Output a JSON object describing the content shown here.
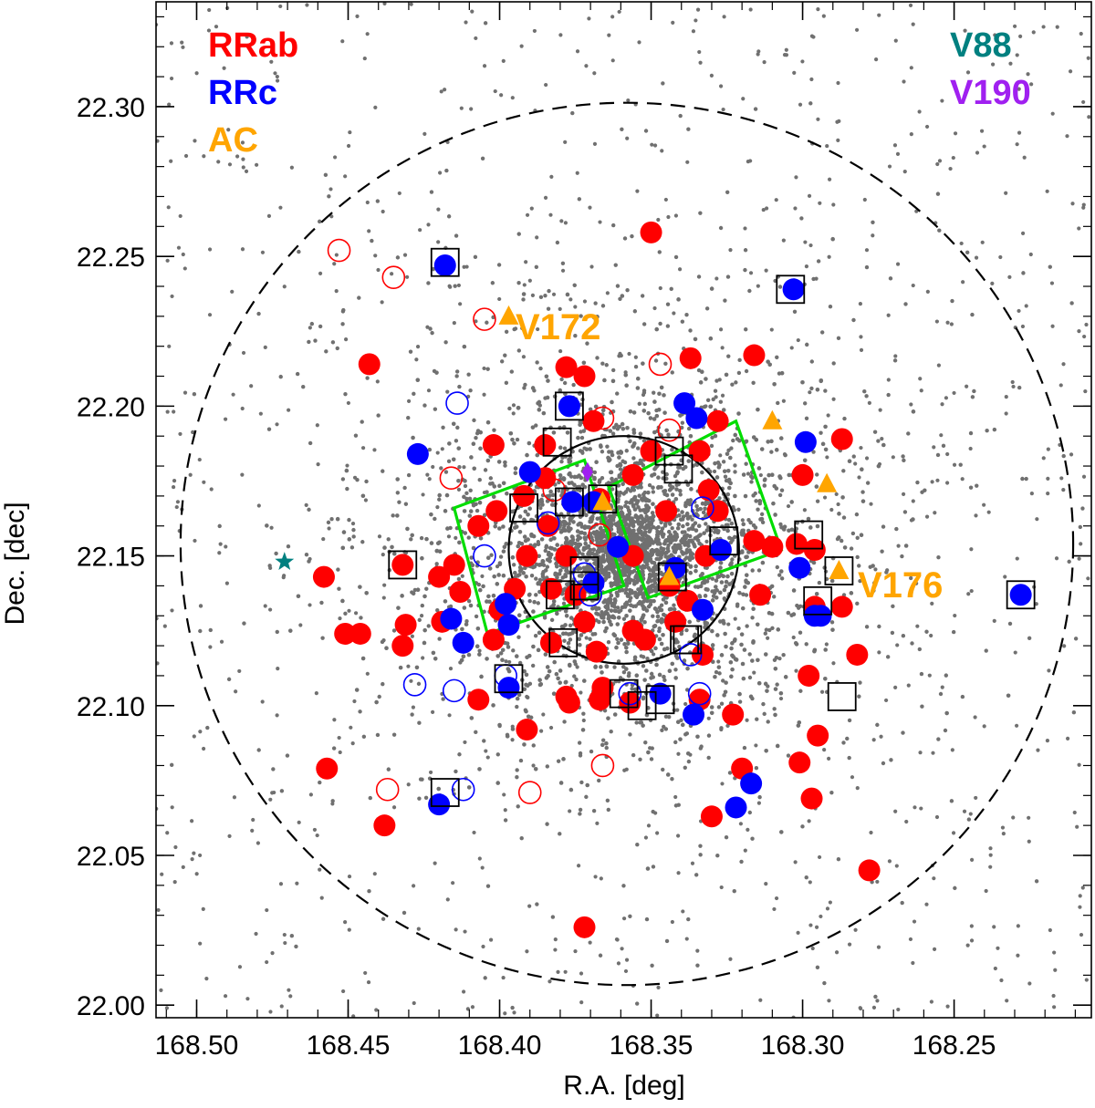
{
  "chart_data": {
    "type": "scatter",
    "xlabel": "R.A. [deg]",
    "ylabel": "Dec. [dec]",
    "xlim": [
      168.5134,
      168.2047
    ],
    "ylim": [
      21.9958,
      22.335
    ],
    "xticks": [
      168.5,
      168.45,
      168.4,
      168.35,
      168.3,
      168.25
    ],
    "xtick_labels": [
      "168.50",
      "168.45",
      "168.40",
      "168.35",
      "168.30",
      "168.25"
    ],
    "yticks": [
      22.0,
      22.05,
      22.1,
      22.15,
      22.2,
      22.25,
      22.3
    ],
    "ytick_labels": [
      "22.00",
      "22.05",
      "22.10",
      "22.15",
      "22.20",
      "22.25",
      "22.30"
    ],
    "legend": [
      {
        "label": "RRab",
        "color": "#ff0000",
        "position": "top-left"
      },
      {
        "label": "RRc",
        "color": "#0000ff",
        "position": "top-left"
      },
      {
        "label": "AC",
        "color": "#ffa500",
        "position": "top-left"
      },
      {
        "label": "V88",
        "color": "#008080",
        "position": "top-right"
      },
      {
        "label": "V190",
        "color": "#a020f0",
        "position": "top-right"
      }
    ],
    "annotations": [
      {
        "text": "V172",
        "ra": 168.39,
        "dec": 22.23,
        "color": "#ffa500"
      },
      {
        "text": "V176",
        "ra": 168.283,
        "dec": 22.145,
        "color": "#ffa500"
      }
    ],
    "colors": {
      "rrab": "#ff0000",
      "rrc": "#0000ff",
      "ac": "#ffa500",
      "v88": "#008080",
      "v190": "#a020f0",
      "field": "#707070",
      "box": "#00dd00"
    },
    "dashed_circle": {
      "center": [
        168.358,
        22.154
      ],
      "radius_deg": 0.1473
    },
    "solid_circle": {
      "center": [
        168.359,
        22.152
      ],
      "radius_deg": 0.038
    },
    "boxes": [
      [
        [
          168.415,
          22.166
        ],
        [
          168.372,
          22.182
        ],
        [
          168.359,
          22.14
        ],
        [
          168.404,
          22.124
        ]
      ],
      [
        [
          168.364,
          22.173
        ],
        [
          168.322,
          22.195
        ],
        [
          168.307,
          22.152
        ],
        [
          168.351,
          22.136
        ]
      ]
    ],
    "series": [
      {
        "name": "RRab filled",
        "marker": "filled-circle",
        "color": "#ff0000",
        "ra": [
          168.35,
          168.443,
          168.378,
          168.385,
          168.372,
          168.392,
          168.337,
          168.3,
          168.316,
          168.287,
          168.334,
          168.328,
          168.331,
          168.35,
          168.345,
          168.302,
          168.287,
          168.415,
          168.432,
          168.458,
          168.42,
          168.451,
          168.407,
          168.384,
          168.385,
          168.391,
          168.395,
          168.378,
          168.383,
          168.375,
          168.372,
          168.344,
          168.342,
          168.338,
          168.356,
          168.332,
          168.31,
          168.314,
          168.296,
          168.298,
          168.295,
          168.323,
          168.32,
          168.33,
          168.419,
          168.413,
          168.432,
          168.446,
          168.431,
          168.407,
          168.402,
          168.383,
          168.368,
          168.366,
          168.378,
          168.391,
          168.357,
          168.334,
          168.282,
          168.301,
          168.377,
          168.367,
          168.352,
          168.344,
          168.297,
          168.316,
          168.328,
          168.296,
          168.438,
          168.457,
          168.278,
          168.372,
          168.356,
          168.369,
          168.333,
          168.356,
          168.401,
          168.4,
          168.367,
          168.402
        ],
        "dec": [
          22.258,
          22.214,
          22.213,
          22.187,
          22.21,
          22.17,
          22.216,
          22.177,
          22.217,
          22.189,
          22.185,
          22.195,
          22.172,
          22.185,
          22.165,
          22.154,
          22.133,
          22.147,
          22.147,
          22.143,
          22.143,
          22.124,
          22.16,
          22.16,
          22.176,
          22.15,
          22.139,
          22.15,
          22.139,
          22.137,
          22.128,
          22.14,
          22.128,
          22.135,
          22.15,
          22.15,
          22.153,
          22.137,
          22.133,
          22.11,
          22.09,
          22.097,
          22.079,
          22.063,
          22.128,
          22.138,
          22.12,
          22.124,
          22.127,
          22.102,
          22.122,
          22.121,
          22.118,
          22.106,
          22.103,
          22.092,
          22.101,
          22.102,
          22.117,
          22.081,
          22.101,
          22.102,
          22.122,
          22.14,
          22.069,
          22.155,
          22.165,
          22.152,
          22.06,
          22.079,
          22.045,
          22.026,
          22.177,
          22.195,
          22.117,
          22.125,
          22.165,
          22.132,
          22.169,
          22.187
        ]
      },
      {
        "name": "RRab open",
        "marker": "open-circle",
        "color": "#ff0000",
        "ra": [
          168.453,
          168.435,
          168.405,
          168.347,
          168.366,
          168.344,
          168.416,
          168.382,
          168.367,
          168.366,
          168.437,
          168.39
        ],
        "dec": [
          22.252,
          22.243,
          22.229,
          22.214,
          22.196,
          22.192,
          22.176,
          22.172,
          22.157,
          22.08,
          22.072,
          22.071
        ]
      },
      {
        "name": "RRc filled",
        "marker": "filled-circle",
        "color": "#0000ff",
        "ra": [
          168.418,
          168.303,
          168.377,
          168.339,
          168.335,
          168.299,
          168.427,
          168.39,
          168.376,
          168.369,
          168.361,
          168.342,
          168.327,
          168.301,
          168.333,
          168.294,
          168.296,
          168.416,
          168.412,
          168.397,
          168.398,
          168.369,
          168.347,
          168.336,
          168.317,
          168.322,
          168.397,
          168.42,
          168.228
        ],
        "dec": [
          22.247,
          22.239,
          22.2,
          22.201,
          22.196,
          22.188,
          22.184,
          22.178,
          22.168,
          22.141,
          22.153,
          22.146,
          22.152,
          22.146,
          22.132,
          22.13,
          22.13,
          22.129,
          22.121,
          22.127,
          22.134,
          22.168,
          22.104,
          22.097,
          22.074,
          22.066,
          22.106,
          22.067,
          22.137
        ]
      },
      {
        "name": "RRc open",
        "marker": "open-circle",
        "color": "#0000ff",
        "ra": [
          168.414,
          168.405,
          168.384,
          168.333,
          168.37,
          168.398,
          168.428,
          168.415,
          168.357,
          168.337,
          168.412,
          168.334,
          168.372
        ],
        "dec": [
          22.201,
          22.15,
          22.161,
          22.166,
          22.137,
          22.11,
          22.107,
          22.105,
          22.104,
          22.117,
          22.072,
          22.104,
          22.144
        ]
      },
      {
        "name": "AC",
        "marker": "filled-triangle",
        "color": "#ffa500",
        "ra": [
          168.397,
          168.31,
          168.292,
          168.288,
          168.344,
          168.366
        ],
        "dec": [
          22.23,
          22.195,
          22.174,
          22.145,
          22.143,
          22.168
        ]
      },
      {
        "name": "V88",
        "marker": "star",
        "color": "#008080",
        "ra": [
          168.471
        ],
        "dec": [
          22.148
        ]
      },
      {
        "name": "V190",
        "marker": "diamond",
        "color": "#a020f0",
        "ra": [
          168.371
        ],
        "dec": [
          22.178
        ]
      },
      {
        "name": "Boxed",
        "marker": "open-square",
        "color": "#000000",
        "ra": [
          168.418,
          168.304,
          168.377,
          168.381,
          168.392,
          168.377,
          168.372,
          168.343,
          168.344,
          168.341,
          168.326,
          168.339,
          168.298,
          168.295,
          168.288,
          168.432,
          168.372,
          168.38,
          168.379,
          168.338,
          168.397,
          168.359,
          168.353,
          168.347,
          168.287,
          168.228,
          168.418,
          168.366
        ],
        "dec": [
          22.248,
          22.239,
          22.2,
          22.188,
          22.166,
          22.168,
          22.145,
          22.143,
          22.185,
          22.179,
          22.155,
          22.122,
          22.157,
          22.135,
          22.145,
          22.147,
          22.14,
          22.137,
          22.121,
          22.122,
          22.109,
          22.104,
          22.1,
          22.102,
          22.103,
          22.137,
          22.071,
          22.169
        ]
      }
    ]
  }
}
